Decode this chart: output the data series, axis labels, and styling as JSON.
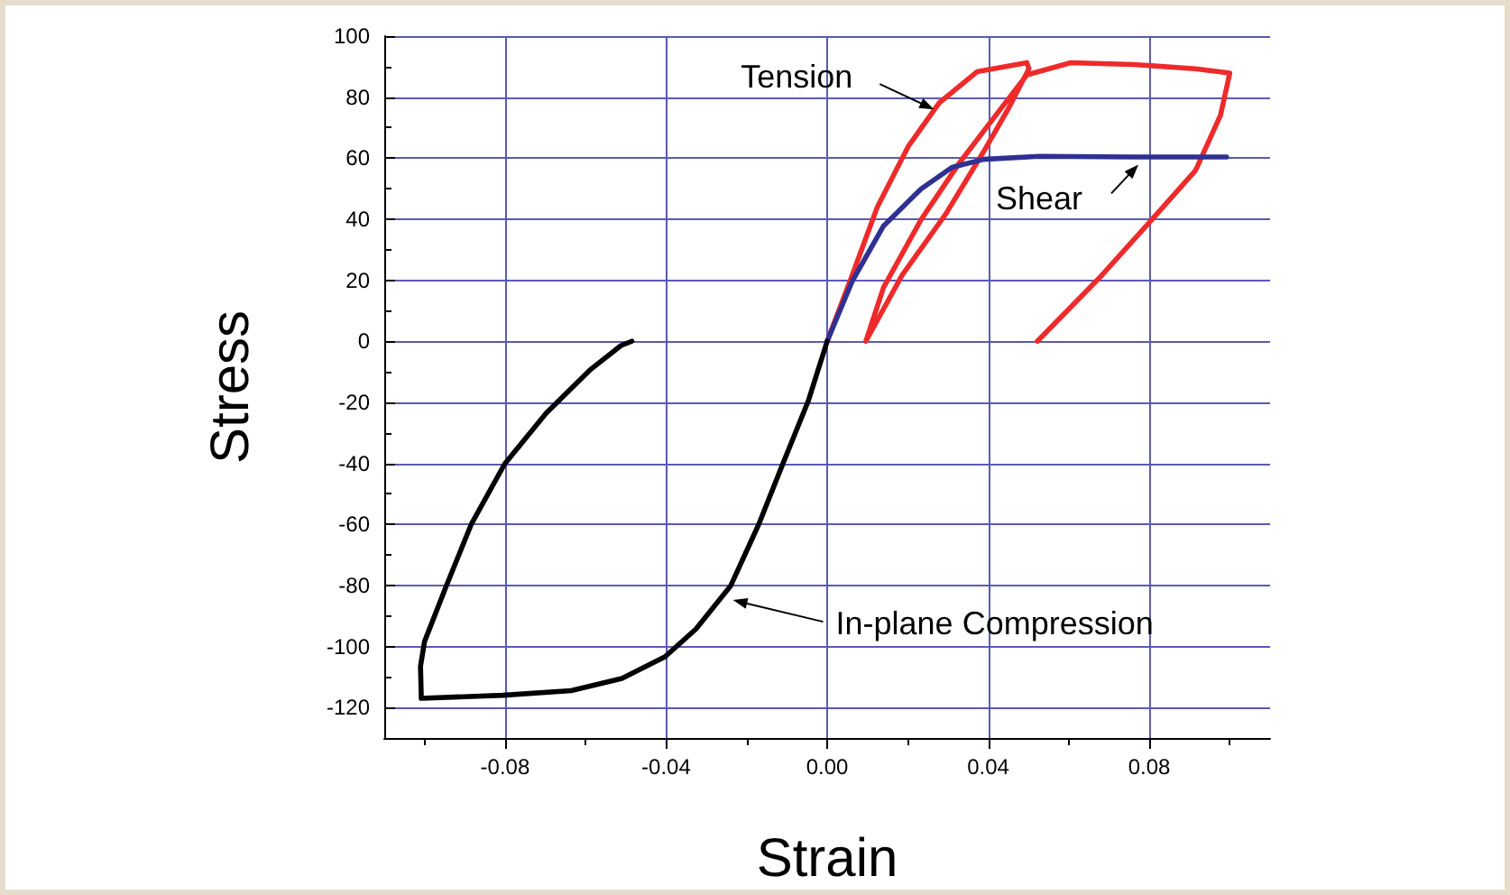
{
  "chart_data": {
    "type": "line",
    "xlabel": "Strain",
    "ylabel": "Stress",
    "xlim": [
      -0.11,
      0.11
    ],
    "ylim": [
      -130,
      100
    ],
    "xticks": [
      {
        "value": -0.1,
        "label": null
      },
      {
        "value": -0.08,
        "label": "-0.08"
      },
      {
        "value": -0.06,
        "label": null
      },
      {
        "value": -0.04,
        "label": "-0.04"
      },
      {
        "value": -0.02,
        "label": null
      },
      {
        "value": 0,
        "label": "0.00"
      },
      {
        "value": 0.02,
        "label": null
      },
      {
        "value": 0.04,
        "label": "0.04"
      },
      {
        "value": 0.06,
        "label": null
      },
      {
        "value": 0.08,
        "label": "0.08"
      },
      {
        "value": 0.1,
        "label": null
      }
    ],
    "yticks": [
      {
        "value": -130,
        "label": null
      },
      -120,
      {
        "value": -110,
        "label": null
      },
      -100,
      {
        "value": -90,
        "label": null
      },
      -80,
      {
        "value": -70,
        "label": null
      },
      -60,
      {
        "value": -50,
        "label": null
      },
      -40,
      {
        "value": -30,
        "label": null
      },
      -20,
      {
        "value": -10,
        "label": null
      },
      0,
      {
        "value": 10,
        "label": null
      },
      20,
      {
        "value": 30,
        "label": null
      },
      40,
      {
        "value": 50,
        "label": null
      },
      60,
      {
        "value": 70,
        "label": null
      },
      80,
      {
        "value": 90,
        "label": null
      },
      100
    ],
    "grid": true,
    "marker": "none",
    "line_style": "solid",
    "series": [
      {
        "color": "#ee2a2a",
        "x": [
          0,
          0.0062,
          0.0124,
          0.0202,
          0.0279,
          0.0372,
          0.0496,
          0.0501,
          0.045,
          0.0388,
          0.0295,
          0.0186,
          0.0096,
          0.014,
          0.0233,
          0.0326,
          0.0419,
          0.0496,
          0.0605,
          0.076,
          0.0915,
          0.1,
          0.0977,
          0.0915,
          0.0806,
          0.0682,
          0.0522
        ],
        "values": [
          0,
          21.6,
          43.8,
          64,
          78.2,
          88.3,
          91.3,
          89.3,
          76.2,
          62,
          41.8,
          21.6,
          0,
          17.6,
          39.8,
          58,
          74.1,
          87.3,
          91.3,
          90.7,
          89.3,
          87.9,
          74.1,
          56,
          39.8,
          21.6,
          0
        ]
      },
      {
        "color": "#2e3192",
        "x": [
          0,
          0.0062,
          0.014,
          0.0233,
          0.031,
          0.0388,
          0.0527,
          0.076,
          0.0992
        ],
        "values": [
          0,
          19.6,
          37.8,
          49.9,
          57,
          59.6,
          60.6,
          60.4,
          60.4
        ]
      },
      {
        "color": "#000000",
        "x": [
          0,
          -0.0047,
          -0.0109,
          -0.017,
          -0.024,
          -0.0326,
          -0.0403,
          -0.051,
          -0.0636,
          -0.0806,
          -0.1008,
          -0.101,
          -0.1,
          -0.0946,
          -0.0884,
          -0.0801,
          -0.0698,
          -0.059,
          -0.0512,
          -0.0485
        ],
        "values": [
          0,
          -19.6,
          -39.8,
          -60,
          -80.2,
          -94.3,
          -103.4,
          -110.5,
          -114.5,
          -116,
          -117,
          -106.5,
          -98.4,
          -80.2,
          -60,
          -40.2,
          -23.6,
          -9.5,
          -1.4,
          0
        ]
      }
    ],
    "annotations": [
      {
        "text": "Tension",
        "x": 0.0265,
        "y": 76
      },
      {
        "text": "Shear",
        "x": 0.0773,
        "y": 57.9
      },
      {
        "text": "In-plane Compression",
        "x": -0.0234,
        "y": -84.8
      }
    ]
  }
}
